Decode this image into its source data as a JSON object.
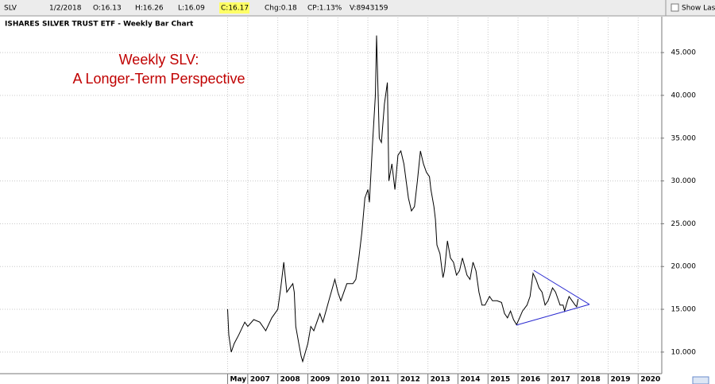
{
  "header": {
    "symbol": "SLV",
    "date": "1/2/2018",
    "open": "O:16.13",
    "high": "H:16.26",
    "low": "L:16.09",
    "close": "C:16.17",
    "change": "Chg:0.18",
    "change_percent": "CP:1.13%",
    "volume": "V:8943159",
    "show_last": "Show Last"
  },
  "chart_data": {
    "type": "line",
    "title": "ISHARES SILVER TRUST ETF - Weekly Bar Chart",
    "annotation": [
      "Weekly SLV:",
      "A Longer-Term Perspective"
    ],
    "color": "#000000",
    "grid": true,
    "x": [
      2006.33,
      2006.37,
      2006.45,
      2006.55,
      2006.7,
      2006.9,
      2007.0,
      2007.2,
      2007.4,
      2007.6,
      2007.8,
      2008.0,
      2008.1,
      2008.2,
      2008.3,
      2008.4,
      2008.5,
      2008.55,
      2008.6,
      2008.7,
      2008.78,
      2008.83,
      2009.0,
      2009.1,
      2009.2,
      2009.4,
      2009.5,
      2009.7,
      2009.9,
      2010.0,
      2010.1,
      2010.3,
      2010.5,
      2010.6,
      2010.7,
      2010.8,
      2010.9,
      2011.0,
      2011.05,
      2011.15,
      2011.25,
      2011.29,
      2011.38,
      2011.45,
      2011.55,
      2011.65,
      2011.7,
      2011.8,
      2011.9,
      2012.0,
      2012.1,
      2012.2,
      2012.35,
      2012.45,
      2012.55,
      2012.65,
      2012.75,
      2012.85,
      2012.95,
      2013.05,
      2013.1,
      2013.2,
      2013.25,
      2013.3,
      2013.4,
      2013.5,
      2013.55,
      2013.65,
      2013.75,
      2013.85,
      2013.95,
      2014.05,
      2014.15,
      2014.3,
      2014.4,
      2014.5,
      2014.6,
      2014.7,
      2014.8,
      2014.9,
      2015.05,
      2015.15,
      2015.3,
      2015.45,
      2015.55,
      2015.65,
      2015.75,
      2015.85,
      2015.95,
      2016.05,
      2016.15,
      2016.3,
      2016.4,
      2016.5,
      2016.6,
      2016.7,
      2016.8,
      2016.9,
      2017.0,
      2017.15,
      2017.25,
      2017.4,
      2017.5,
      2017.55,
      2017.65,
      2017.7,
      2017.8,
      2017.9,
      2017.95,
      2018.0
    ],
    "values": [
      15,
      12,
      10,
      11,
      12,
      13.5,
      13,
      13.8,
      13.5,
      12.5,
      14,
      15,
      17.5,
      20.5,
      17,
      17.5,
      18,
      17,
      13,
      11,
      9.5,
      8.9,
      11,
      13,
      12.5,
      14.5,
      13.5,
      16,
      18.5,
      17,
      16,
      18,
      18,
      18.5,
      21,
      24,
      28,
      29,
      27.5,
      34,
      40,
      47,
      35,
      34.5,
      39,
      41.5,
      30,
      32,
      29,
      33,
      33.5,
      32,
      28,
      26.5,
      27,
      30,
      33.5,
      32,
      31,
      30.5,
      29,
      27,
      25.5,
      22.5,
      21.5,
      18.7,
      19.5,
      23,
      21,
      20.5,
      19,
      19.5,
      21,
      19,
      18.5,
      20.5,
      19.5,
      17,
      15.5,
      15.5,
      16.5,
      16,
      16,
      15.8,
      14.5,
      14,
      14.8,
      13.8,
      13.2,
      14,
      14.8,
      15.5,
      16.5,
      19.2,
      18.5,
      17.5,
      17,
      15.5,
      16,
      17.5,
      17,
      15.5,
      15.5,
      14.8,
      16,
      16.5,
      16,
      15.5,
      15.3,
      16.2
    ],
    "trendlines": [
      {
        "color": "#2a2ad0",
        "x": [
          2016.52,
          2018.38
        ],
        "y": [
          19.56,
          15.57
        ]
      },
      {
        "color": "#2a2ad0",
        "x": [
          2015.94,
          2018.38
        ],
        "y": [
          13.15,
          15.57
        ]
      }
    ],
    "xlim": [
      1998.75,
      2020.76
    ],
    "xticks": [
      {
        "value": 2006.33,
        "label": "May"
      },
      2007,
      2008,
      2009,
      2010,
      2011,
      2012,
      2013,
      2014,
      2015,
      2016,
      2017,
      2018,
      2019,
      2020
    ],
    "ylim": [
      7.2,
      49.1
    ],
    "yticks": [
      {
        "value": 10,
        "label": "10.000"
      },
      {
        "value": 15,
        "label": "15.000"
      },
      {
        "value": 20,
        "label": "20.000"
      },
      {
        "value": 25,
        "label": "25.000"
      },
      {
        "value": 30,
        "label": "30.000"
      },
      {
        "value": 35,
        "label": "35.000"
      },
      {
        "value": 40,
        "label": "40.000"
      },
      {
        "value": 45,
        "label": "45.000"
      }
    ]
  }
}
